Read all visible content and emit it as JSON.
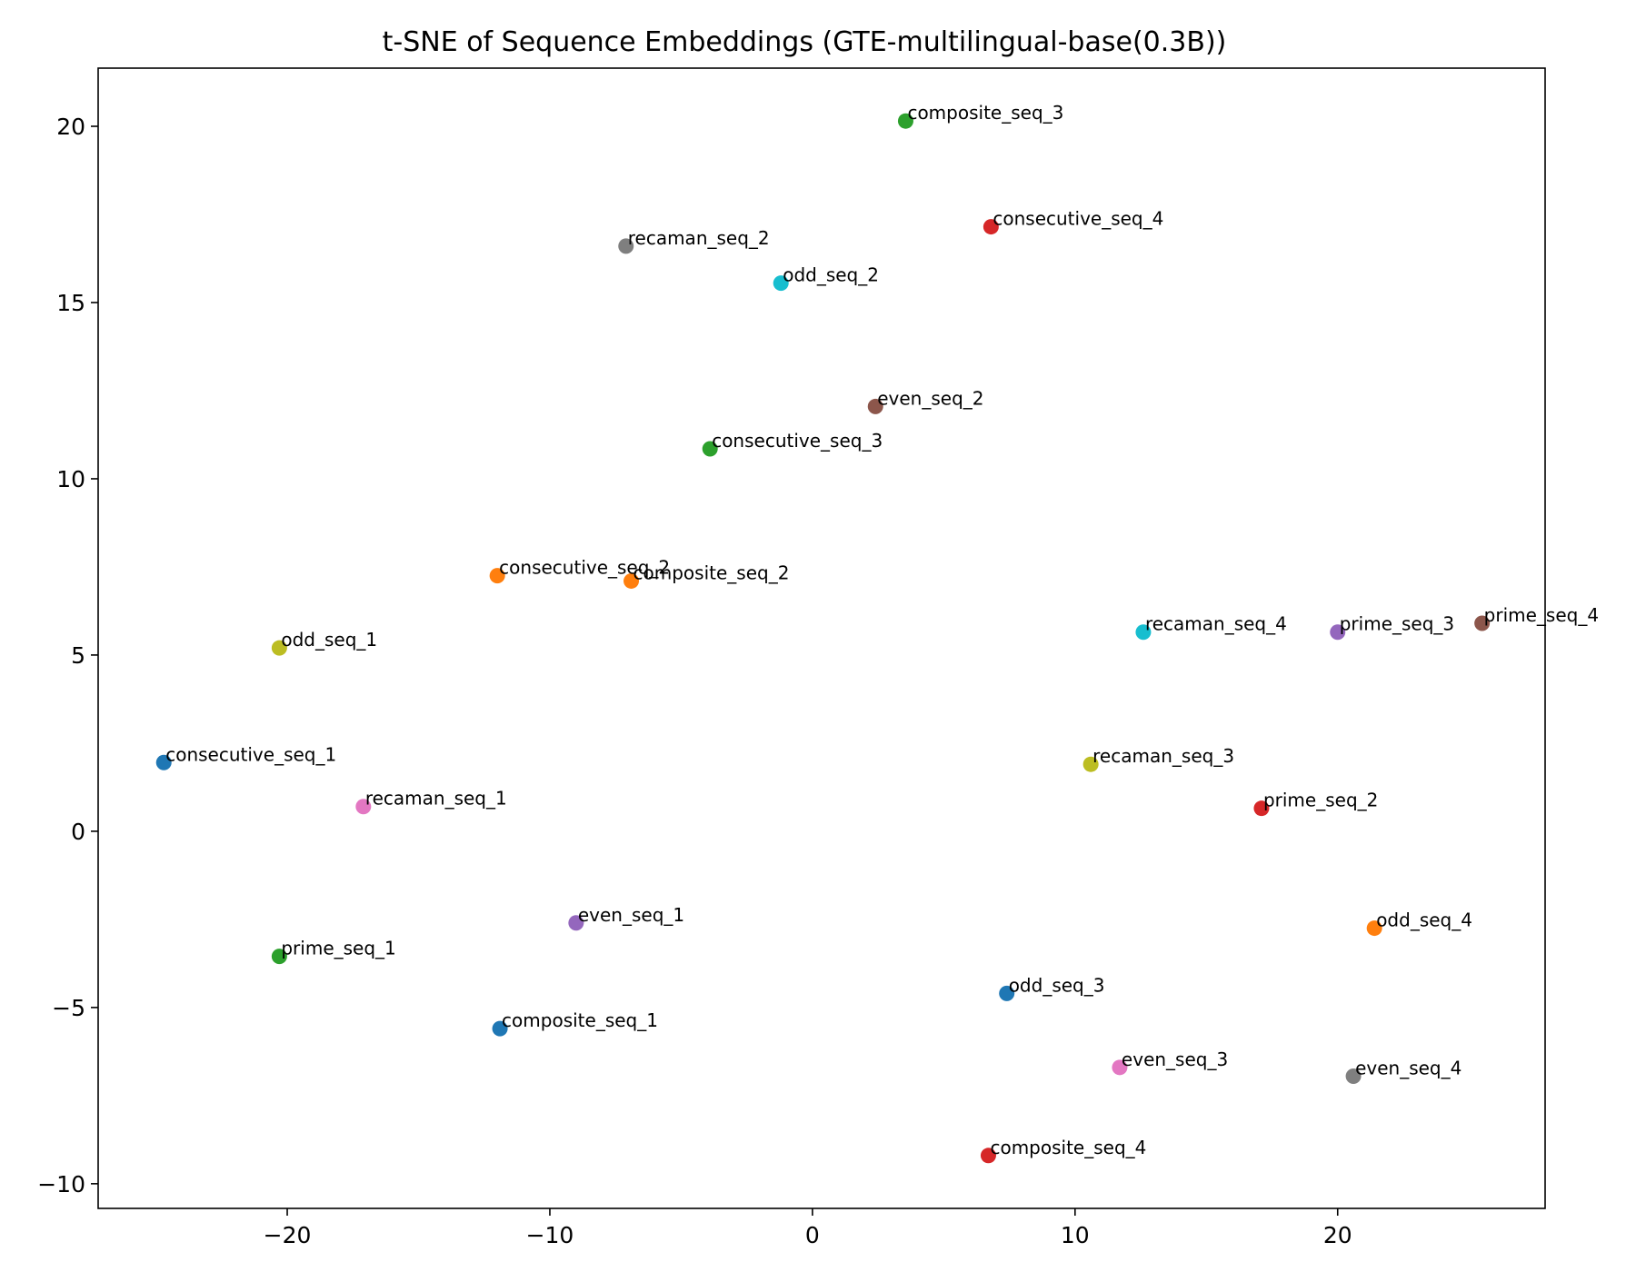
{
  "chart_data": {
    "type": "scatter",
    "title": "t-SNE of Sequence Embeddings (GTE-multilingual-base(0.3B))",
    "xlabel": "",
    "ylabel": "",
    "xlim": [
      -27.2,
      27.9
    ],
    "ylim": [
      -10.7,
      21.65
    ],
    "xticks": [
      -20,
      -10,
      0,
      10,
      20
    ],
    "xtick_labels": [
      "−20",
      "−10",
      "0",
      "10",
      "20"
    ],
    "yticks": [
      -10,
      -5,
      0,
      5,
      10,
      15,
      20
    ],
    "ytick_labels": [
      "−10",
      "−5",
      "0",
      "5",
      "10",
      "15",
      "20"
    ],
    "grid": false,
    "legend": "none",
    "points": [
      {
        "label": "composite_seq_3",
        "x": 3.55,
        "y": 20.15,
        "color": "#2ca02c"
      },
      {
        "label": "consecutive_seq_4",
        "x": 6.8,
        "y": 17.15,
        "color": "#d62728"
      },
      {
        "label": "recaman_seq_2",
        "x": -7.1,
        "y": 16.6,
        "color": "#7f7f7f"
      },
      {
        "label": "odd_seq_2",
        "x": -1.2,
        "y": 15.55,
        "color": "#17becf"
      },
      {
        "label": "even_seq_2",
        "x": 2.4,
        "y": 12.05,
        "color": "#8c564b"
      },
      {
        "label": "consecutive_seq_3",
        "x": -3.9,
        "y": 10.85,
        "color": "#2ca02c"
      },
      {
        "label": "consecutive_seq_2",
        "x": -12.0,
        "y": 7.25,
        "color": "#ff7f0e"
      },
      {
        "label": "composite_seq_2",
        "x": -6.9,
        "y": 7.1,
        "color": "#ff7f0e"
      },
      {
        "label": "odd_seq_1",
        "x": -20.3,
        "y": 5.2,
        "color": "#bcbd22"
      },
      {
        "label": "recaman_seq_4",
        "x": 12.6,
        "y": 5.65,
        "color": "#17becf"
      },
      {
        "label": "prime_seq_3",
        "x": 20.0,
        "y": 5.65,
        "color": "#9467bd"
      },
      {
        "label": "prime_seq_4",
        "x": 25.5,
        "y": 5.9,
        "color": "#8c564b"
      },
      {
        "label": "consecutive_seq_1",
        "x": -24.7,
        "y": 1.95,
        "color": "#1f77b4"
      },
      {
        "label": "recaman_seq_3",
        "x": 10.6,
        "y": 1.9,
        "color": "#bcbd22"
      },
      {
        "label": "recaman_seq_1",
        "x": -17.1,
        "y": 0.7,
        "color": "#e377c2"
      },
      {
        "label": "prime_seq_2",
        "x": 17.1,
        "y": 0.65,
        "color": "#d62728"
      },
      {
        "label": "even_seq_1",
        "x": -9.0,
        "y": -2.6,
        "color": "#9467bd"
      },
      {
        "label": "odd_seq_4",
        "x": 21.4,
        "y": -2.75,
        "color": "#ff7f0e"
      },
      {
        "label": "prime_seq_1",
        "x": -20.3,
        "y": -3.55,
        "color": "#2ca02c"
      },
      {
        "label": "odd_seq_3",
        "x": 7.4,
        "y": -4.6,
        "color": "#1f77b4"
      },
      {
        "label": "composite_seq_1",
        "x": -11.9,
        "y": -5.6,
        "color": "#1f77b4"
      },
      {
        "label": "even_seq_3",
        "x": 11.7,
        "y": -6.7,
        "color": "#e377c2"
      },
      {
        "label": "even_seq_4",
        "x": 20.6,
        "y": -6.95,
        "color": "#7f7f7f"
      },
      {
        "label": "composite_seq_4",
        "x": 6.7,
        "y": -9.2,
        "color": "#d62728"
      }
    ]
  }
}
